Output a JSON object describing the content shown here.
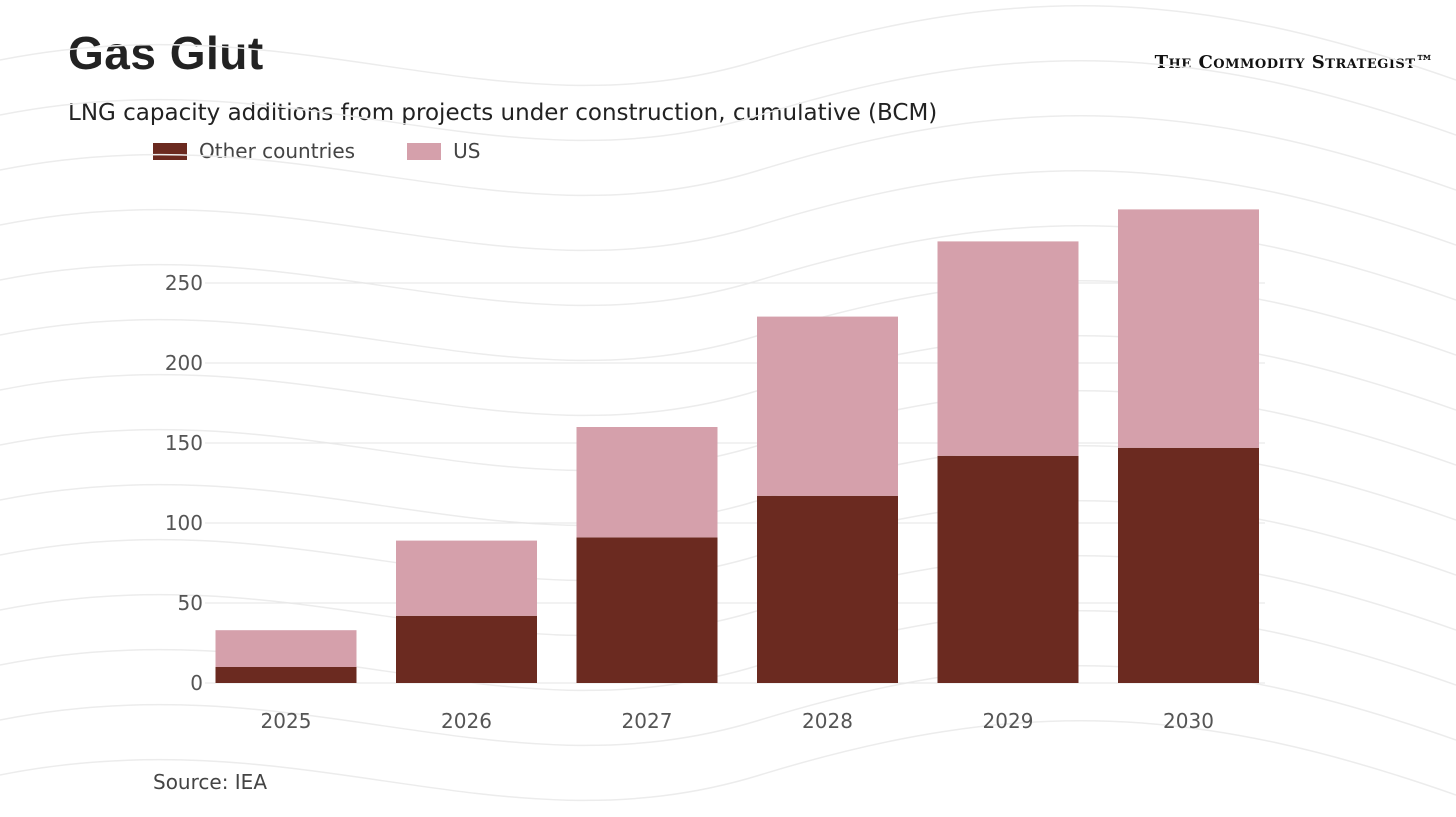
{
  "header": {
    "title": "Gas Glut",
    "subtitle": "LNG capacity additions from projects under construction, cumulative (BCM)",
    "logo": "The Commodity Strategist™"
  },
  "footer": {
    "source": "Source: IEA"
  },
  "chart_data": {
    "type": "bar",
    "stacked": true,
    "title": "Gas Glut",
    "subtitle": "LNG capacity additions from projects under construction, cumulative (BCM)",
    "categories": [
      "2025",
      "2026",
      "2027",
      "2028",
      "2029",
      "2030"
    ],
    "series": [
      {
        "name": "Other countries",
        "color": "#6b2a20",
        "values": [
          10,
          42,
          91,
          117,
          142,
          147
        ]
      },
      {
        "name": "US",
        "color": "#d5a0ab",
        "values": [
          23,
          47,
          69,
          112,
          134,
          149
        ]
      }
    ],
    "yticks": [
      "0",
      "50",
      "100",
      "150",
      "200",
      "250"
    ],
    "ylim": [
      0,
      300
    ],
    "xlabel": "",
    "ylabel": "",
    "grid": true,
    "legend": "top-left"
  }
}
